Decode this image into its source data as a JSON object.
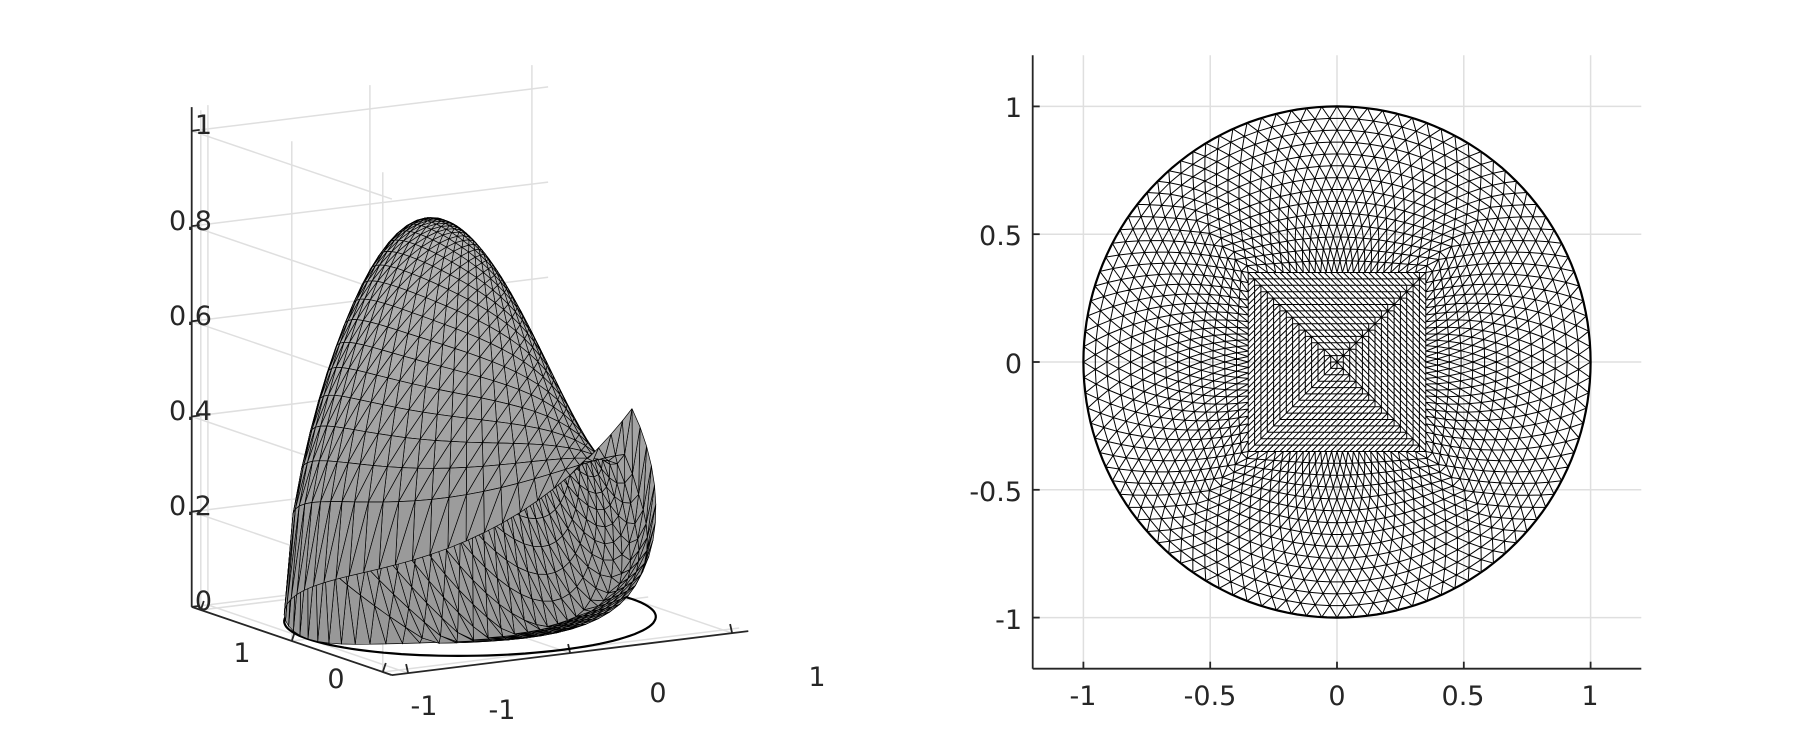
{
  "chart_data": [
    {
      "type": "surface",
      "title": "",
      "xlabel": "",
      "ylabel": "",
      "zlabel": "",
      "x_ticks": [
        "-1",
        "0",
        "1"
      ],
      "y_ticks": [
        "-1",
        "0",
        "1"
      ],
      "z_ticks": [
        "0",
        "0.2",
        "0.4",
        "0.6",
        "0.8",
        "1"
      ],
      "xlim": [
        -1.1,
        1.1
      ],
      "ylim": [
        -1.1,
        1.1
      ],
      "zlim": [
        0,
        1.05
      ],
      "grid": true,
      "domain": "unit disk",
      "surface_peak": 0.87,
      "surface_peak_at": [
        -0.25,
        0.3
      ],
      "surface_edge_height_at_x1": 0.4,
      "face_color": "#b4b4b4",
      "edge_color": "#000000"
    },
    {
      "type": "mesh",
      "title": "",
      "xlabel": "",
      "ylabel": "",
      "x_ticks": [
        "-1",
        "-0.5",
        "0",
        "0.5",
        "1"
      ],
      "y_ticks": [
        "-1",
        "-0.5",
        "0",
        "0.5",
        "1"
      ],
      "xlim": [
        -1.2,
        1.2
      ],
      "ylim": [
        -1.2,
        1.2
      ],
      "grid": true,
      "domain": "unit disk",
      "mesh": "triangular",
      "refined_region": "square [-0.35, 0.35] x [-0.35, 0.35]",
      "edge_color": "#000000"
    }
  ]
}
